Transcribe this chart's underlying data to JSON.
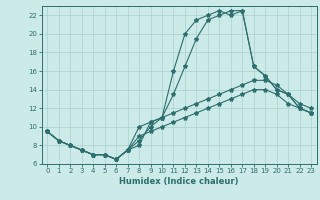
{
  "xlabel": "Humidex (Indice chaleur)",
  "background_color": "#cceae8",
  "line_color": "#2d6e6e",
  "grid_color": "#aed4d2",
  "x_values": [
    0,
    1,
    2,
    3,
    4,
    5,
    6,
    7,
    8,
    9,
    10,
    11,
    12,
    13,
    14,
    15,
    16,
    17,
    18,
    19,
    20,
    21,
    22,
    23
  ],
  "series": [
    [
      9.5,
      8.5,
      8.0,
      7.5,
      7.0,
      7.0,
      6.5,
      7.5,
      8.0,
      10.5,
      11.0,
      16.0,
      20.0,
      21.5,
      22.0,
      22.5,
      22.0,
      22.5,
      16.5,
      15.5,
      14.0,
      13.5,
      12.0,
      11.5
    ],
    [
      9.5,
      8.5,
      8.0,
      7.5,
      7.0,
      7.0,
      6.5,
      7.5,
      8.5,
      10.0,
      11.0,
      13.5,
      16.5,
      19.5,
      21.5,
      22.0,
      22.5,
      22.5,
      16.5,
      15.5,
      14.0,
      13.5,
      12.0,
      11.5
    ],
    [
      9.5,
      8.5,
      8.0,
      7.5,
      7.0,
      7.0,
      6.5,
      7.5,
      10.0,
      10.5,
      11.0,
      11.5,
      12.0,
      12.5,
      13.0,
      13.5,
      14.0,
      14.5,
      15.0,
      15.0,
      14.5,
      13.5,
      12.5,
      12.0
    ],
    [
      9.5,
      8.5,
      8.0,
      7.5,
      7.0,
      7.0,
      6.5,
      7.5,
      9.0,
      9.5,
      10.0,
      10.5,
      11.0,
      11.5,
      12.0,
      12.5,
      13.0,
      13.5,
      14.0,
      14.0,
      13.5,
      12.5,
      12.0,
      11.5
    ]
  ],
  "ylim": [
    6,
    23
  ],
  "xlim": [
    -0.5,
    23.5
  ],
  "yticks": [
    6,
    8,
    10,
    12,
    14,
    16,
    18,
    20,
    22
  ],
  "xticks": [
    0,
    1,
    2,
    3,
    4,
    5,
    6,
    7,
    8,
    9,
    10,
    11,
    12,
    13,
    14,
    15,
    16,
    17,
    18,
    19,
    20,
    21,
    22,
    23
  ],
  "tick_fontsize": 5,
  "xlabel_fontsize": 6,
  "linewidth": 0.8,
  "markersize": 3
}
